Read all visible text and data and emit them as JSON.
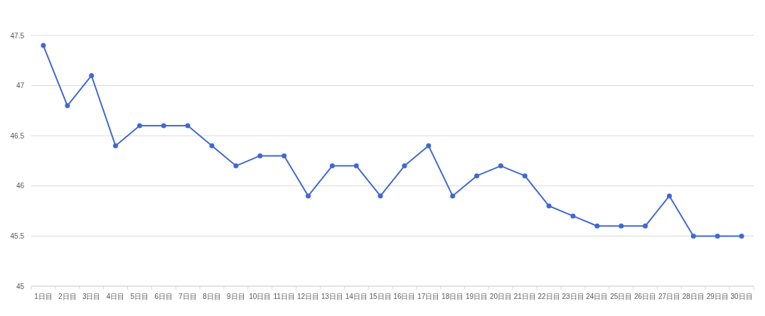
{
  "chart_data": {
    "type": "line",
    "categories": [
      "1日目",
      "2日目",
      "3日目",
      "4日目",
      "5日目",
      "6日目",
      "7日目",
      "8日目",
      "9日目",
      "10日目",
      "11日目",
      "12日目",
      "13日目",
      "14日目",
      "15日目",
      "16日目",
      "17日目",
      "18日目",
      "19日目",
      "20日目",
      "21日目",
      "22日目",
      "23日目",
      "24日目",
      "25日目",
      "26日目",
      "27日目",
      "28日目",
      "29日目",
      "30日目"
    ],
    "series": [
      {
        "color": "#4169d1",
        "values": [
          47.4,
          46.8,
          47.1,
          46.4,
          46.6,
          46.6,
          46.6,
          46.4,
          46.2,
          46.3,
          46.3,
          45.9,
          46.2,
          46.2,
          45.9,
          46.2,
          46.4,
          45.9,
          46.1,
          46.2,
          46.1,
          45.8,
          45.7,
          45.6,
          45.6,
          45.6,
          45.9,
          45.5,
          45.5,
          45.5
        ]
      }
    ],
    "ylim": [
      45,
      47.5
    ],
    "yticks": [
      45,
      45.5,
      46,
      46.5,
      47,
      47.5
    ],
    "grid": "y",
    "marker": "circle"
  }
}
